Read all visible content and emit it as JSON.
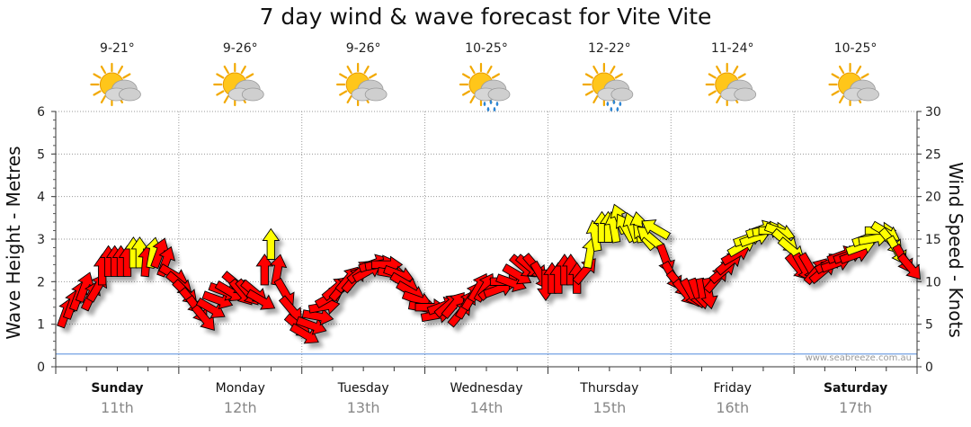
{
  "chart_data": {
    "type": "arrow-timeseries",
    "title": "7 day wind & wave forecast for Vite Vite",
    "ylabel_left": "Wave Height - Metres",
    "ylabel_right": "Wind Speed - Knots",
    "ylim_left": [
      0,
      6
    ],
    "ylim_right": [
      0,
      30
    ],
    "yticks_left": [
      "0",
      "1",
      "2",
      "3",
      "4",
      "5",
      "6"
    ],
    "yticks_right": [
      "0",
      "5",
      "10",
      "15",
      "20",
      "25",
      "30"
    ],
    "grid": true,
    "credit": "www.seabreeze.com.au",
    "colors": {
      "strong": "#ff0000",
      "light": "#ffff00",
      "outline": "#000000"
    },
    "days": [
      {
        "name": "Sunday",
        "date": "11th",
        "bold": true,
        "temp": "9-21°",
        "icon": "partly-cloudy-icon"
      },
      {
        "name": "Monday",
        "date": "12th",
        "bold": false,
        "temp": "9-26°",
        "icon": "partly-cloudy-icon"
      },
      {
        "name": "Tuesday",
        "date": "13th",
        "bold": false,
        "temp": "9-26°",
        "icon": "partly-cloudy-icon"
      },
      {
        "name": "Wednesday",
        "date": "14th",
        "bold": false,
        "temp": "10-25°",
        "icon": "sun-rain-icon"
      },
      {
        "name": "Thursday",
        "date": "15th",
        "bold": false,
        "temp": "12-22°",
        "icon": "sun-rain-icon"
      },
      {
        "name": "Friday",
        "date": "16th",
        "bold": false,
        "temp": "11-24°",
        "icon": "partly-cloudy-icon"
      },
      {
        "name": "Saturday",
        "date": "17th",
        "bold": true,
        "temp": "10-25°",
        "icon": "partly-cloudy-icon"
      }
    ],
    "wind": {
      "knots": [
        6,
        7,
        8,
        9,
        8,
        9,
        11,
        12,
        12,
        12,
        12,
        13,
        13,
        12,
        13,
        13,
        12,
        11,
        10,
        9,
        8,
        7,
        6,
        7,
        8,
        9,
        9,
        10,
        9,
        9,
        9,
        8,
        11,
        14,
        11,
        9,
        7,
        5,
        4,
        5,
        6,
        7,
        8,
        9,
        9,
        10,
        10,
        11,
        11,
        12,
        12,
        12,
        11,
        11,
        10,
        9,
        8,
        7,
        7,
        6,
        7,
        7,
        7,
        6,
        7,
        8,
        9,
        9,
        9,
        9,
        10,
        10,
        11,
        12,
        12,
        12,
        11,
        10,
        10,
        10,
        11,
        11,
        10,
        11,
        13,
        15,
        16,
        16,
        16,
        17,
        16,
        16,
        16,
        15,
        15,
        16,
        13,
        11,
        10,
        9,
        9,
        9,
        9,
        9,
        10,
        11,
        12,
        13,
        14,
        15,
        15,
        16,
        16,
        16,
        16,
        15,
        14,
        12,
        12,
        12,
        11,
        11,
        12,
        12,
        13,
        13,
        13,
        14,
        15,
        15,
        16,
        16,
        15,
        14,
        13,
        12
      ],
      "direction_deg": [
        200,
        200,
        200,
        200,
        205,
        210,
        180,
        180,
        180,
        180,
        180,
        180,
        180,
        185,
        190,
        200,
        200,
        300,
        310,
        315,
        320,
        325,
        320,
        300,
        290,
        290,
        300,
        310,
        320,
        320,
        310,
        300,
        180,
        180,
        190,
        330,
        320,
        310,
        300,
        290,
        280,
        260,
        240,
        230,
        220,
        220,
        220,
        230,
        240,
        250,
        260,
        270,
        280,
        290,
        300,
        300,
        290,
        280,
        270,
        260,
        250,
        230,
        220,
        220,
        210,
        210,
        210,
        210,
        230,
        250,
        270,
        290,
        300,
        310,
        310,
        320,
        330,
        0,
        180,
        180,
        180,
        180,
        180,
        220,
        190,
        170,
        180,
        180,
        170,
        160,
        150,
        160,
        170,
        140,
        130,
        120,
        340,
        330,
        320,
        320,
        330,
        340,
        350,
        350,
        220,
        230,
        230,
        240,
        240,
        250,
        250,
        250,
        260,
        270,
        290,
        310,
        310,
        320,
        330,
        330,
        220,
        230,
        240,
        250,
        250,
        250,
        250,
        250,
        250,
        260,
        270,
        300,
        320,
        330,
        330,
        320
      ]
    },
    "waves": {
      "x_days": [
        0,
        0.5,
        1,
        1.5,
        2,
        2.5,
        3,
        3.5,
        4,
        4.5,
        5,
        5.5,
        6,
        6.5,
        7
      ],
      "metres": [
        0.3,
        0.3,
        0.3,
        0.3,
        0.3,
        0.3,
        0.3,
        0.3,
        0.3,
        0.3,
        0.3,
        0.3,
        0.3,
        0.3,
        0.3
      ]
    }
  }
}
